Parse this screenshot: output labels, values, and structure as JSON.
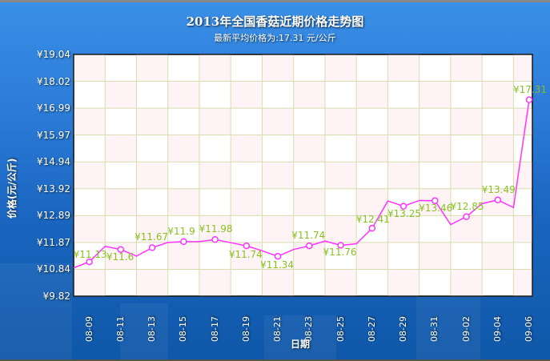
{
  "header": {
    "title": "2013年全国香菇近期价格走势图",
    "subtitle": "最新平均价格为:17.31 元/公斤"
  },
  "colors": {
    "background": "#2b7cd8",
    "plot_bg": "#ffffff",
    "plot_band": "#fff3f6",
    "grid": "#d8dcb0",
    "line": "#ff33ff",
    "data_label": "#88c021",
    "text": "#ffffff"
  },
  "chart_data": {
    "type": "line",
    "title": "2013年全国香菇近期价格走势图",
    "subtitle": "最新平均价格为:17.31 元/公斤",
    "xlabel": "日期",
    "ylabel": "价格(元/公斤)",
    "ylim": [
      9.82,
      19.04
    ],
    "yticks": [
      "¥9.82",
      "¥10.84",
      "¥11.87",
      "¥12.89",
      "¥13.92",
      "¥14.94",
      "¥15.97",
      "¥16.99",
      "¥18.02",
      "¥19.04"
    ],
    "xticks": [
      "08-09",
      "08-11",
      "08-13",
      "08-15",
      "08-17",
      "08-19",
      "08-21",
      "08-23",
      "08-25",
      "08-27",
      "08-29",
      "08-31",
      "09-02",
      "09-04",
      "09-06"
    ],
    "grid": true,
    "legend": null,
    "series": [
      {
        "name": "价格",
        "x": [
          "08-08",
          "08-09",
          "08-10",
          "08-11",
          "08-12",
          "08-13",
          "08-14",
          "08-15",
          "08-16",
          "08-17",
          "08-18",
          "08-19",
          "08-20",
          "08-21",
          "08-22",
          "08-23",
          "08-24",
          "08-25",
          "08-26",
          "08-27",
          "08-28",
          "08-29",
          "08-30",
          "08-31",
          "09-01",
          "09-02",
          "09-03",
          "09-04",
          "09-05",
          "09-06"
        ],
        "values": [
          10.9,
          11.13,
          11.72,
          11.6,
          11.35,
          11.67,
          11.87,
          11.9,
          11.9,
          11.98,
          11.86,
          11.74,
          11.55,
          11.34,
          11.6,
          11.74,
          11.92,
          11.76,
          11.82,
          12.41,
          13.45,
          13.25,
          13.47,
          13.46,
          12.55,
          12.85,
          13.35,
          13.49,
          13.2,
          17.31
        ]
      }
    ],
    "data_labels": [
      {
        "date": "08-09",
        "text": "¥11.13"
      },
      {
        "date": "08-11",
        "text": "¥11.6"
      },
      {
        "date": "08-13",
        "text": "¥11.67"
      },
      {
        "date": "08-15",
        "text": "¥11.9"
      },
      {
        "date": "08-17",
        "text": "¥11.98"
      },
      {
        "date": "08-19",
        "text": "¥11.74"
      },
      {
        "date": "08-21",
        "text": "¥11.34"
      },
      {
        "date": "08-23",
        "text": "¥11.74"
      },
      {
        "date": "08-25",
        "text": "¥11.76"
      },
      {
        "date": "08-27",
        "text": "¥12.41"
      },
      {
        "date": "08-29",
        "text": "¥13.25"
      },
      {
        "date": "08-31",
        "text": "¥13.46"
      },
      {
        "date": "09-02",
        "text": "¥12.85"
      },
      {
        "date": "09-04",
        "text": "¥13.49"
      },
      {
        "date": "09-06",
        "text": "¥17.31"
      }
    ]
  }
}
